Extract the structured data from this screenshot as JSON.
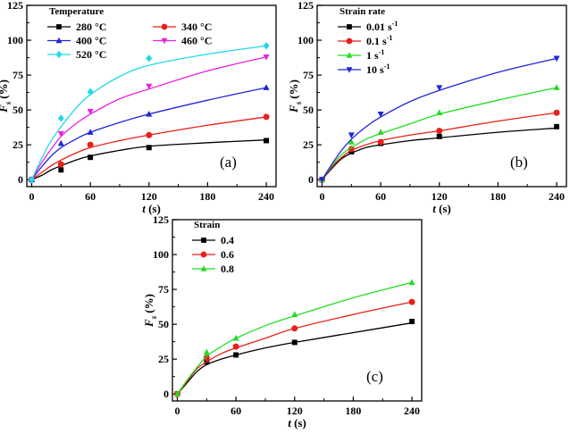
{
  "figure": {
    "x_label_var": "t",
    "x_label_unit": " (s)",
    "y_label_var": "F",
    "y_label_sub": "s",
    "y_label_unit": "(%)"
  },
  "chart_data": [
    {
      "type": "line",
      "panel_label": "(a)",
      "legend_title": "Temperature",
      "xlabel": "t (s)",
      "ylabel": "Fs (%)",
      "xlim": [
        -5,
        250
      ],
      "ylim": [
        -5,
        125
      ],
      "xticks": [
        0,
        60,
        120,
        180,
        240
      ],
      "yticks": [
        0,
        25,
        50,
        75,
        100,
        125
      ],
      "series": [
        {
          "name": "280 °C",
          "color": "#000000",
          "marker": "square",
          "x": [
            0,
            30,
            60,
            120,
            240
          ],
          "y": [
            0,
            7,
            16,
            23,
            28
          ],
          "curve": [
            [
              0,
              0
            ],
            [
              10,
              3
            ],
            [
              20,
              7
            ],
            [
              30,
              10
            ],
            [
              45,
              14
            ],
            [
              60,
              17
            ],
            [
              90,
              21
            ],
            [
              120,
              24
            ],
            [
              180,
              26.5
            ],
            [
              240,
              28.5
            ]
          ]
        },
        {
          "name": "340 °C",
          "color": "#e8201a",
          "marker": "circle",
          "x": [
            0,
            30,
            60,
            120,
            240
          ],
          "y": [
            0,
            11,
            25,
            32,
            45
          ],
          "curve": [
            [
              0,
              0
            ],
            [
              10,
              5
            ],
            [
              20,
              10
            ],
            [
              30,
              14
            ],
            [
              45,
              19
            ],
            [
              60,
              23
            ],
            [
              90,
              28
            ],
            [
              120,
              32
            ],
            [
              180,
              39
            ],
            [
              240,
              45
            ]
          ]
        },
        {
          "name": "400 °C",
          "color": "#1f25d6",
          "marker": "triangle",
          "x": [
            0,
            30,
            60,
            120,
            240
          ],
          "y": [
            0,
            26,
            34,
            47,
            66
          ],
          "curve": [
            [
              0,
              0
            ],
            [
              10,
              9
            ],
            [
              20,
              17
            ],
            [
              30,
              23
            ],
            [
              45,
              29
            ],
            [
              60,
              34
            ],
            [
              90,
              41
            ],
            [
              120,
              47
            ],
            [
              180,
              57
            ],
            [
              240,
              66
            ]
          ]
        },
        {
          "name": "460 °C",
          "color": "#e820e0",
          "marker": "tri-down",
          "x": [
            0,
            30,
            60,
            120,
            240
          ],
          "y": [
            0,
            33,
            49,
            67,
            88
          ],
          "curve": [
            [
              0,
              0
            ],
            [
              10,
              12
            ],
            [
              20,
              22
            ],
            [
              30,
              31
            ],
            [
              45,
              40
            ],
            [
              60,
              47
            ],
            [
              90,
              58
            ],
            [
              120,
              65
            ],
            [
              180,
              78
            ],
            [
              240,
              88
            ]
          ]
        },
        {
          "name": "520 °C",
          "color": "#22d8e8",
          "marker": "diamond",
          "x": [
            0,
            30,
            60,
            120,
            240
          ],
          "y": [
            0,
            44,
            63,
            87,
            96
          ],
          "curve": [
            [
              0,
              0
            ],
            [
              10,
              15
            ],
            [
              20,
              28
            ],
            [
              30,
              38
            ],
            [
              45,
              51
            ],
            [
              60,
              61
            ],
            [
              90,
              74
            ],
            [
              120,
              82
            ],
            [
              180,
              90
            ],
            [
              240,
              96
            ]
          ]
        }
      ]
    },
    {
      "type": "line",
      "panel_label": "(b)",
      "legend_title": "Strain rate",
      "xlabel": "t (s)",
      "ylabel": "Fs (%)",
      "xlim": [
        -5,
        250
      ],
      "ylim": [
        -5,
        125
      ],
      "xticks": [
        0,
        60,
        120,
        180,
        240
      ],
      "yticks": [
        0,
        25,
        50,
        75,
        100,
        125
      ],
      "series": [
        {
          "name": "0.01 s",
          "sup": "-1",
          "color": "#000000",
          "marker": "square",
          "x": [
            0,
            30,
            60,
            120,
            240
          ],
          "y": [
            0,
            20,
            26,
            31,
            38
          ],
          "curve": [
            [
              0,
              0
            ],
            [
              10,
              8
            ],
            [
              20,
              15
            ],
            [
              30,
              19
            ],
            [
              45,
              23
            ],
            [
              60,
              25
            ],
            [
              90,
              28
            ],
            [
              120,
              30
            ],
            [
              180,
              34
            ],
            [
              240,
              37
            ]
          ]
        },
        {
          "name": "0.1 s",
          "sup": "-1",
          "color": "#e8201a",
          "marker": "circle",
          "x": [
            0,
            30,
            60,
            120,
            240
          ],
          "y": [
            0,
            22,
            27,
            35,
            48
          ],
          "curve": [
            [
              0,
              0
            ],
            [
              10,
              9
            ],
            [
              20,
              16
            ],
            [
              30,
              21
            ],
            [
              45,
              25
            ],
            [
              60,
              28
            ],
            [
              90,
              32
            ],
            [
              120,
              35
            ],
            [
              180,
              42
            ],
            [
              240,
              48
            ]
          ]
        },
        {
          "name": "1 s",
          "sup": "-1",
          "color": "#22dd22",
          "marker": "triangle",
          "x": [
            0,
            30,
            60,
            120,
            240
          ],
          "y": [
            0,
            27,
            34,
            48,
            66
          ],
          "curve": [
            [
              0,
              0
            ],
            [
              10,
              10
            ],
            [
              20,
              18
            ],
            [
              30,
              23
            ],
            [
              45,
              29
            ],
            [
              60,
              33
            ],
            [
              90,
              40
            ],
            [
              120,
              47
            ],
            [
              180,
              57
            ],
            [
              240,
              66
            ]
          ]
        },
        {
          "name": "10 s",
          "sup": "-1",
          "color": "#1f25d6",
          "marker": "tri-down",
          "x": [
            0,
            30,
            60,
            120,
            240
          ],
          "y": [
            0,
            32,
            47,
            66,
            87
          ],
          "curve": [
            [
              0,
              0
            ],
            [
              10,
              11
            ],
            [
              20,
              21
            ],
            [
              30,
              29
            ],
            [
              45,
              38
            ],
            [
              60,
              45
            ],
            [
              90,
              56
            ],
            [
              120,
              64
            ],
            [
              180,
              77
            ],
            [
              240,
              87
            ]
          ]
        }
      ]
    },
    {
      "type": "line",
      "panel_label": "(c)",
      "legend_title": "Strain",
      "xlabel": "t (s)",
      "ylabel": "Fs (%)",
      "xlim": [
        -5,
        250
      ],
      "ylim": [
        -5,
        125
      ],
      "xticks": [
        0,
        60,
        120,
        180,
        240
      ],
      "yticks": [
        0,
        25,
        50,
        75,
        100,
        125
      ],
      "series": [
        {
          "name": "0.4",
          "color": "#000000",
          "marker": "square",
          "x": [
            0,
            30,
            60,
            120,
            240
          ],
          "y": [
            0,
            23,
            28,
            37,
            52
          ],
          "curve": [
            [
              0,
              0
            ],
            [
              10,
              8
            ],
            [
              20,
              16
            ],
            [
              30,
              21
            ],
            [
              45,
              25
            ],
            [
              60,
              28
            ],
            [
              90,
              33
            ],
            [
              120,
              37
            ],
            [
              180,
              44
            ],
            [
              240,
              51
            ]
          ]
        },
        {
          "name": "0.6",
          "color": "#e8201a",
          "marker": "circle",
          "x": [
            0,
            30,
            60,
            120,
            240
          ],
          "y": [
            0,
            26,
            34,
            47,
            66
          ],
          "curve": [
            [
              0,
              0
            ],
            [
              10,
              9
            ],
            [
              20,
              18
            ],
            [
              30,
              23
            ],
            [
              45,
              29
            ],
            [
              60,
              33
            ],
            [
              90,
              40
            ],
            [
              120,
              47
            ],
            [
              180,
              57
            ],
            [
              240,
              66
            ]
          ]
        },
        {
          "name": "0.8",
          "color": "#22dd22",
          "marker": "triangle",
          "x": [
            0,
            30,
            60,
            120,
            240
          ],
          "y": [
            0,
            30,
            40,
            57,
            80
          ],
          "curve": [
            [
              0,
              0
            ],
            [
              10,
              10
            ],
            [
              20,
              19
            ],
            [
              30,
              27
            ],
            [
              45,
              34
            ],
            [
              60,
              40
            ],
            [
              90,
              49
            ],
            [
              120,
              56
            ],
            [
              180,
              69
            ],
            [
              240,
              80
            ]
          ]
        }
      ]
    }
  ]
}
